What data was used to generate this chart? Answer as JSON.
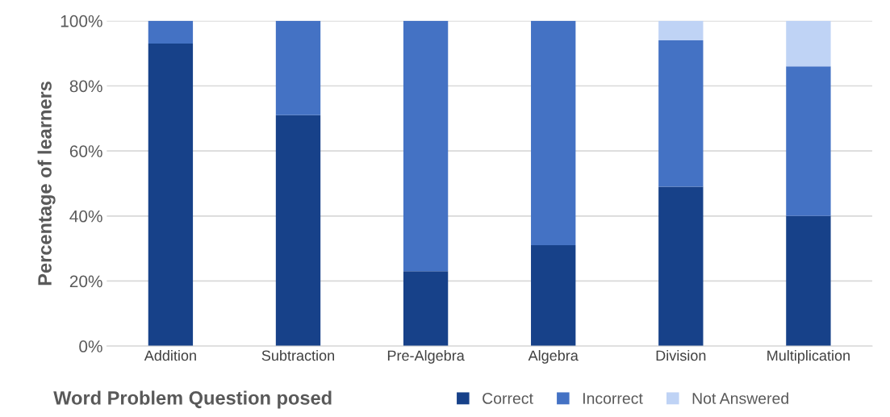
{
  "chart_data": {
    "type": "bar",
    "stacked": true,
    "xlabel": "Word Problem Question posed",
    "ylabel": "Percentage of learners",
    "categories": [
      "Addition",
      "Subtraction",
      "Pre-Algebra",
      "Algebra",
      "Division",
      "Multiplication"
    ],
    "series": [
      {
        "name": "Correct",
        "color": "#174189",
        "values": [
          93,
          71,
          23,
          31,
          49,
          40
        ]
      },
      {
        "name": "Incorrect",
        "color": "#4472c4",
        "values": [
          7,
          29,
          77,
          69,
          45,
          46
        ]
      },
      {
        "name": "Not Answered",
        "color": "#bfd3f5",
        "values": [
          0,
          0,
          0,
          0,
          6,
          14
        ]
      }
    ],
    "ylim": [
      0,
      100
    ],
    "yticks": [
      {
        "value": 0,
        "label": "0%"
      },
      {
        "value": 20,
        "label": "20%"
      },
      {
        "value": 40,
        "label": "40%"
      },
      {
        "value": 60,
        "label": "60%"
      },
      {
        "value": 80,
        "label": "80%"
      },
      {
        "value": 100,
        "label": "100%"
      }
    ],
    "grid": "y",
    "legend": "bottom"
  }
}
